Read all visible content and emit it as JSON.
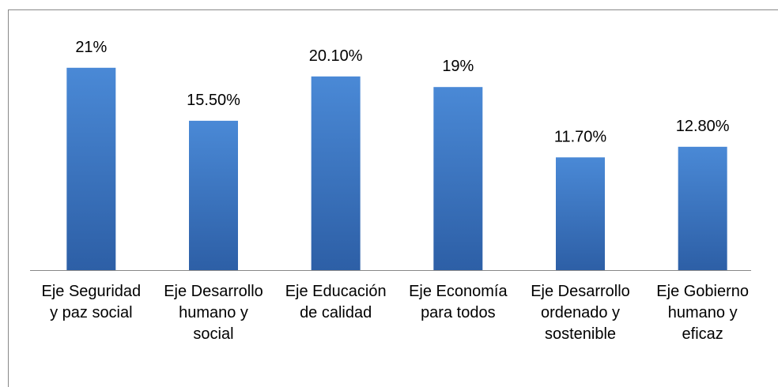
{
  "chart_data": {
    "type": "bar",
    "categories": [
      "Eje Seguridad y paz social",
      "Eje Desarrollo humano y social",
      "Eje Educación de calidad",
      "Eje Economía para todos",
      "Eje Desarrollo ordenado y sostenible",
      "Eje Gobierno humano y eficaz"
    ],
    "values": [
      21,
      15.5,
      20.1,
      19,
      11.7,
      12.8
    ],
    "value_labels": [
      "21%",
      "15.50%",
      "20.10%",
      "19%",
      "11.70%",
      "12.80%"
    ],
    "color": "#3a74c0",
    "ylim": [
      0,
      25
    ]
  }
}
